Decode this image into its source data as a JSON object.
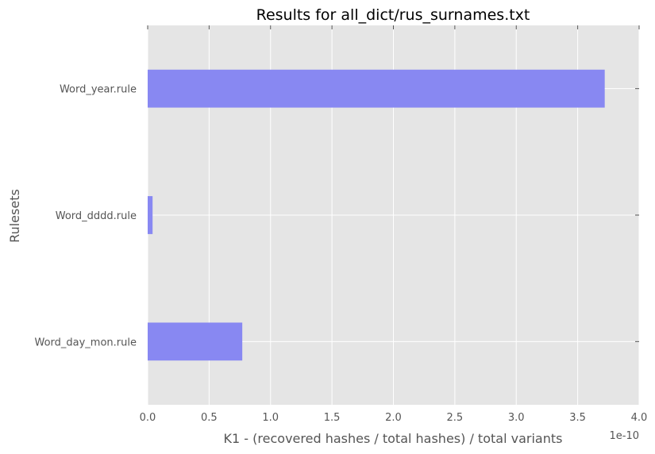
{
  "chart_data": {
    "type": "bar",
    "orientation": "horizontal",
    "title": "Results for all_dict/rus_surnames.txt",
    "xlabel": "K1 - (recovered hashes / total hashes) / total variants",
    "ylabel": "Rulesets",
    "x_offset_label": "1e-10",
    "x_scale_multiplier": 1e-10,
    "xlim": [
      0,
      4.0
    ],
    "xticks": [
      "0.0",
      "0.5",
      "1.0",
      "1.5",
      "2.0",
      "2.5",
      "3.0",
      "3.5",
      "4.0"
    ],
    "categories": [
      "Word_year.rule",
      "Word_dddd.rule",
      "Word_day_mon.rule"
    ],
    "values": [
      3.72,
      0.04,
      0.77
    ],
    "bar_color": "#8888f2",
    "background_color": "#e5e5e5",
    "grid": true
  }
}
